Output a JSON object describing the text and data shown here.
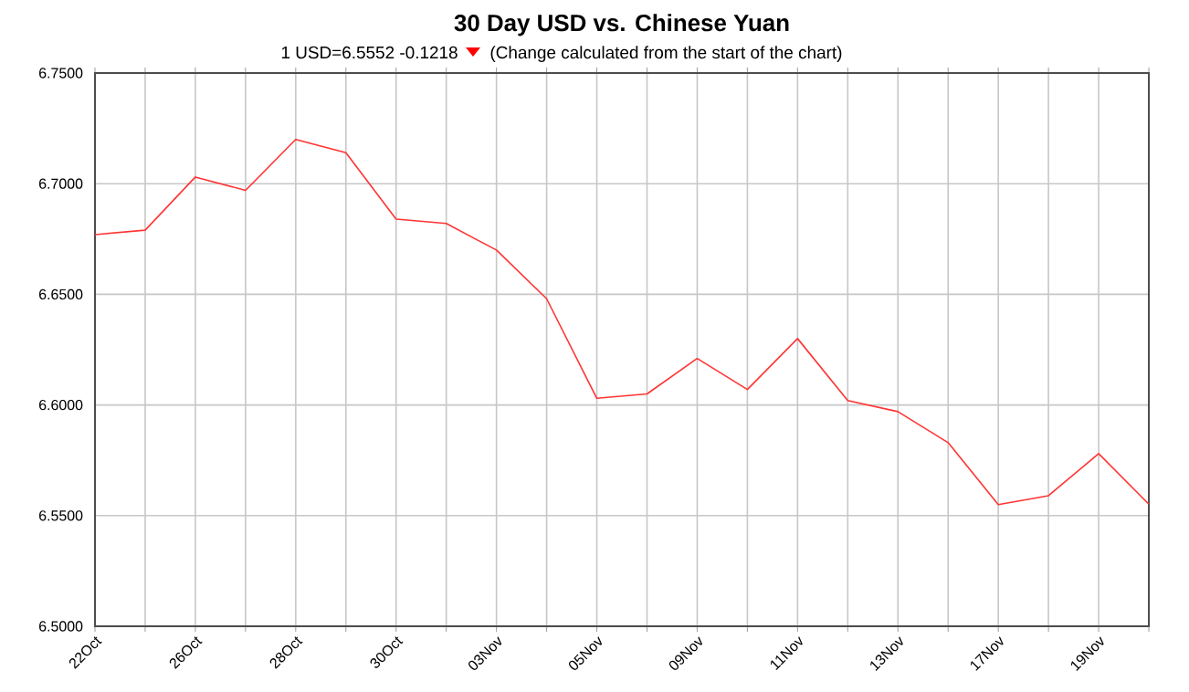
{
  "chart_data": {
    "type": "line",
    "title": "30 Day USD vs. Chinese Yuan",
    "subtitle": "1 USD=6.5552  -0.1218",
    "annotations": [
      "(Change calculated from the start of the chart)"
    ],
    "categories": [
      "22Oct",
      null,
      "26Oct",
      null,
      "28Oct",
      null,
      "30Oct",
      null,
      "03Nov",
      null,
      "05Nov",
      null,
      "09Nov",
      null,
      "11Nov",
      null,
      "13Nov",
      null,
      "17Nov",
      null,
      "19Nov",
      null
    ],
    "values": [
      6.677,
      6.679,
      6.703,
      6.697,
      6.72,
      6.714,
      6.684,
      6.682,
      6.67,
      6.648,
      6.603,
      6.605,
      6.621,
      6.607,
      6.63,
      6.602,
      6.597,
      6.583,
      6.555,
      6.559,
      6.578,
      6.5552
    ],
    "color": "#ff3333",
    "ylim": [
      6.5,
      6.75
    ],
    "yticks": [
      {
        "value": 6.5,
        "label": "6.5000"
      },
      {
        "value": 6.55,
        "label": "6.5500"
      },
      {
        "value": 6.6,
        "label": "6.6000"
      },
      {
        "value": 6.65,
        "label": "6.6500"
      },
      {
        "value": 6.7,
        "label": "6.7000"
      },
      {
        "value": 6.75,
        "label": "6.7500"
      }
    ],
    "grid": true,
    "marker": "none",
    "line_style": "solid"
  }
}
